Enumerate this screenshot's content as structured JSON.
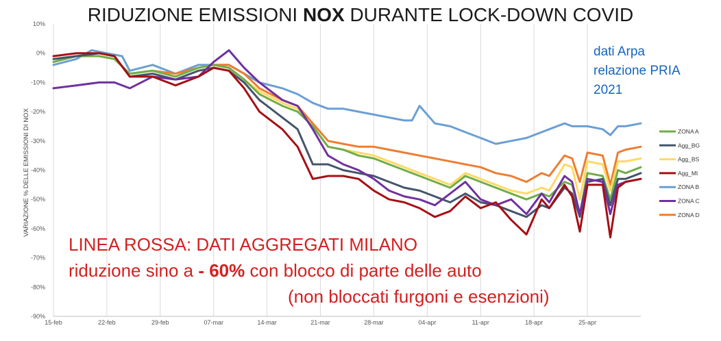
{
  "title": {
    "pre": "RIDUZIONE EMISSIONI ",
    "bold": "NOX",
    "post": " DURANTE LOCK-DOWN COVID"
  },
  "source": [
    "dati Arpa",
    "relazione PRIA",
    "2021"
  ],
  "annotation": {
    "line1": "LINEA ROSSA:  DATI AGGREGATI MILANO",
    "line2_pre": "riduzione sino a  ",
    "line2_bold": "- 60%",
    "line2_post": " con blocco di parte delle auto",
    "line3": "(non bloccati furgoni e esenzioni)"
  },
  "colors": {
    "ZONA A": "#70ad47",
    "Agg_BG": "#44546a",
    "Agg_BS": "#ffd966",
    "Agg_MI": "#a50f15",
    "ZONA B": "#6a9fd4",
    "ZONA C": "#7030a0",
    "ZONA D": "#ed7d31",
    "annotation": "#d42020",
    "source": "#1565c0"
  },
  "chart_data": {
    "type": "line",
    "title": "RIDUZIONE EMISSIONI NOX DURANTE LOCK-DOWN COVID",
    "xlabel": "",
    "ylabel": "VARIAZIONE % DELLE EMISSIONI DI NOX",
    "x_ticks": [
      "15-feb",
      "22-feb",
      "29-feb",
      "07-mar",
      "14-mar",
      "21-mar",
      "28-mar",
      "04-apr",
      "11-apr",
      "18-apr",
      "25-apr"
    ],
    "y_ticks": [
      "10%",
      "0%",
      "-10%",
      "-20%",
      "-30%",
      "-40%",
      "-50%",
      "-60%",
      "-70%",
      "-80%",
      "-90%"
    ],
    "ylim": [
      -90,
      10
    ],
    "xlim": [
      0,
      77
    ],
    "grid": "vertical",
    "legend_position": "right",
    "series": [
      {
        "name": "ZONA A",
        "points": [
          [
            0,
            -3
          ],
          [
            3,
            -1
          ],
          [
            6,
            -1
          ],
          [
            8,
            -2
          ],
          [
            10,
            -7
          ],
          [
            13,
            -6
          ],
          [
            16,
            -8
          ],
          [
            19,
            -5
          ],
          [
            21,
            -4
          ],
          [
            23,
            -5
          ],
          [
            25,
            -9
          ],
          [
            27,
            -14
          ],
          [
            30,
            -18
          ],
          [
            32,
            -20
          ],
          [
            34,
            -25
          ],
          [
            36,
            -32
          ],
          [
            38,
            -33
          ],
          [
            40,
            -35
          ],
          [
            42,
            -36
          ],
          [
            44,
            -38
          ],
          [
            46,
            -40
          ],
          [
            48,
            -42
          ],
          [
            50,
            -44
          ],
          [
            52,
            -46
          ],
          [
            54,
            -42
          ],
          [
            56,
            -44
          ],
          [
            58,
            -46
          ],
          [
            60,
            -48
          ],
          [
            62,
            -50
          ],
          [
            64,
            -48
          ],
          [
            65,
            -49
          ],
          [
            67,
            -44
          ],
          [
            68,
            -45
          ],
          [
            69,
            -55
          ],
          [
            70,
            -41
          ],
          [
            72,
            -42
          ],
          [
            73,
            -50
          ],
          [
            74,
            -40
          ],
          [
            75,
            -41
          ],
          [
            77,
            -39
          ]
        ]
      },
      {
        "name": "Agg_BG",
        "points": [
          [
            0,
            -2
          ],
          [
            3,
            -1
          ],
          [
            6,
            0
          ],
          [
            8,
            -1
          ],
          [
            10,
            -8
          ],
          [
            13,
            -7
          ],
          [
            16,
            -9
          ],
          [
            19,
            -6
          ],
          [
            21,
            -5
          ],
          [
            23,
            -6
          ],
          [
            25,
            -10
          ],
          [
            27,
            -16
          ],
          [
            30,
            -22
          ],
          [
            32,
            -26
          ],
          [
            34,
            -38
          ],
          [
            36,
            -38
          ],
          [
            38,
            -40
          ],
          [
            40,
            -41
          ],
          [
            42,
            -42
          ],
          [
            44,
            -44
          ],
          [
            46,
            -46
          ],
          [
            48,
            -47
          ],
          [
            50,
            -49
          ],
          [
            52,
            -51
          ],
          [
            54,
            -48
          ],
          [
            56,
            -51
          ],
          [
            58,
            -52
          ],
          [
            60,
            -54
          ],
          [
            62,
            -56
          ],
          [
            64,
            -52
          ],
          [
            65,
            -53
          ],
          [
            67,
            -46
          ],
          [
            68,
            -48
          ],
          [
            69,
            -56
          ],
          [
            70,
            -44
          ],
          [
            72,
            -43
          ],
          [
            73,
            -52
          ],
          [
            74,
            -43
          ],
          [
            75,
            -43
          ],
          [
            77,
            -41
          ]
        ]
      },
      {
        "name": "Agg_BS",
        "points": [
          [
            0,
            -2
          ],
          [
            3,
            -1
          ],
          [
            6,
            -1
          ],
          [
            8,
            -2
          ],
          [
            10,
            -7
          ],
          [
            13,
            -6
          ],
          [
            16,
            -8
          ],
          [
            19,
            -5
          ],
          [
            21,
            -4
          ],
          [
            23,
            -5
          ],
          [
            25,
            -9
          ],
          [
            27,
            -13
          ],
          [
            30,
            -17
          ],
          [
            32,
            -19
          ],
          [
            34,
            -25
          ],
          [
            36,
            -32
          ],
          [
            38,
            -33
          ],
          [
            40,
            -34
          ],
          [
            42,
            -35
          ],
          [
            44,
            -37
          ],
          [
            46,
            -39
          ],
          [
            48,
            -41
          ],
          [
            50,
            -43
          ],
          [
            52,
            -45
          ],
          [
            54,
            -41
          ],
          [
            56,
            -43
          ],
          [
            58,
            -45
          ],
          [
            60,
            -47
          ],
          [
            62,
            -48
          ],
          [
            64,
            -46
          ],
          [
            65,
            -47
          ],
          [
            67,
            -38
          ],
          [
            68,
            -39
          ],
          [
            69,
            -50
          ],
          [
            70,
            -37
          ],
          [
            72,
            -38
          ],
          [
            73,
            -47
          ],
          [
            74,
            -37
          ],
          [
            75,
            -37
          ],
          [
            77,
            -36
          ]
        ]
      },
      {
        "name": "Agg_MI",
        "points": [
          [
            0,
            -1
          ],
          [
            3,
            0
          ],
          [
            6,
            0
          ],
          [
            8,
            -1
          ],
          [
            10,
            -8
          ],
          [
            13,
            -8
          ],
          [
            16,
            -11
          ],
          [
            19,
            -8
          ],
          [
            21,
            -5
          ],
          [
            23,
            -6
          ],
          [
            25,
            -12
          ],
          [
            27,
            -20
          ],
          [
            30,
            -26
          ],
          [
            32,
            -32
          ],
          [
            34,
            -43
          ],
          [
            36,
            -42
          ],
          [
            38,
            -42
          ],
          [
            40,
            -43
          ],
          [
            42,
            -47
          ],
          [
            44,
            -50
          ],
          [
            46,
            -51
          ],
          [
            48,
            -53
          ],
          [
            50,
            -56
          ],
          [
            52,
            -54
          ],
          [
            54,
            -49
          ],
          [
            56,
            -53
          ],
          [
            58,
            -51
          ],
          [
            60,
            -57
          ],
          [
            62,
            -62
          ],
          [
            64,
            -50
          ],
          [
            65,
            -53
          ],
          [
            67,
            -45
          ],
          [
            68,
            -49
          ],
          [
            69,
            -61
          ],
          [
            70,
            -45
          ],
          [
            72,
            -45
          ],
          [
            73,
            -63
          ],
          [
            74,
            -46
          ],
          [
            75,
            -44
          ],
          [
            77,
            -43
          ]
        ]
      },
      {
        "name": "ZONA B",
        "points": [
          [
            0,
            -4
          ],
          [
            3,
            -2
          ],
          [
            5,
            1
          ],
          [
            7,
            0
          ],
          [
            9,
            -1
          ],
          [
            10,
            -6
          ],
          [
            13,
            -4
          ],
          [
            16,
            -7
          ],
          [
            19,
            -4
          ],
          [
            21,
            -4
          ],
          [
            23,
            -4
          ],
          [
            25,
            -7
          ],
          [
            27,
            -10
          ],
          [
            30,
            -12
          ],
          [
            32,
            -14
          ],
          [
            34,
            -17
          ],
          [
            36,
            -19
          ],
          [
            38,
            -19
          ],
          [
            40,
            -20
          ],
          [
            42,
            -21
          ],
          [
            44,
            -22
          ],
          [
            46,
            -23
          ],
          [
            47,
            -23
          ],
          [
            48,
            -18
          ],
          [
            50,
            -24
          ],
          [
            52,
            -25
          ],
          [
            54,
            -27
          ],
          [
            56,
            -29
          ],
          [
            58,
            -31
          ],
          [
            60,
            -30
          ],
          [
            62,
            -29
          ],
          [
            64,
            -27
          ],
          [
            65,
            -26
          ],
          [
            67,
            -24
          ],
          [
            68,
            -25
          ],
          [
            69,
            -25
          ],
          [
            70,
            -25
          ],
          [
            72,
            -26
          ],
          [
            73,
            -28
          ],
          [
            74,
            -25
          ],
          [
            75,
            -25
          ],
          [
            77,
            -24
          ]
        ]
      },
      {
        "name": "ZONA C",
        "points": [
          [
            0,
            -12
          ],
          [
            3,
            -11
          ],
          [
            6,
            -10
          ],
          [
            8,
            -10
          ],
          [
            10,
            -12
          ],
          [
            13,
            -8
          ],
          [
            16,
            -9
          ],
          [
            19,
            -8
          ],
          [
            21,
            -3
          ],
          [
            23,
            1
          ],
          [
            25,
            -5
          ],
          [
            27,
            -10
          ],
          [
            30,
            -16
          ],
          [
            32,
            -18
          ],
          [
            34,
            -26
          ],
          [
            36,
            -35
          ],
          [
            38,
            -38
          ],
          [
            40,
            -40
          ],
          [
            42,
            -43
          ],
          [
            44,
            -47
          ],
          [
            46,
            -49
          ],
          [
            48,
            -50
          ],
          [
            50,
            -52
          ],
          [
            52,
            -48
          ],
          [
            54,
            -44
          ],
          [
            56,
            -50
          ],
          [
            58,
            -52
          ],
          [
            60,
            -50
          ],
          [
            62,
            -55
          ],
          [
            64,
            -48
          ],
          [
            65,
            -51
          ],
          [
            67,
            -42
          ],
          [
            68,
            -44
          ],
          [
            69,
            -55
          ],
          [
            70,
            -43
          ],
          [
            72,
            -44
          ],
          [
            73,
            -55
          ],
          [
            74,
            -45
          ],
          [
            75,
            -44
          ],
          [
            77,
            -43
          ]
        ]
      },
      {
        "name": "ZONA D",
        "points": [
          [
            0,
            -2
          ],
          [
            3,
            -1
          ],
          [
            6,
            -1
          ],
          [
            8,
            -2
          ],
          [
            10,
            -7
          ],
          [
            13,
            -6
          ],
          [
            16,
            -7
          ],
          [
            19,
            -5
          ],
          [
            21,
            -4
          ],
          [
            23,
            -4
          ],
          [
            25,
            -7
          ],
          [
            27,
            -12
          ],
          [
            30,
            -16
          ],
          [
            32,
            -18
          ],
          [
            34,
            -24
          ],
          [
            36,
            -30
          ],
          [
            38,
            -31
          ],
          [
            40,
            -32
          ],
          [
            42,
            -32
          ],
          [
            44,
            -33
          ],
          [
            46,
            -34
          ],
          [
            48,
            -35
          ],
          [
            50,
            -36
          ],
          [
            52,
            -37
          ],
          [
            54,
            -38
          ],
          [
            56,
            -39
          ],
          [
            58,
            -41
          ],
          [
            60,
            -42
          ],
          [
            62,
            -44
          ],
          [
            64,
            -41
          ],
          [
            65,
            -42
          ],
          [
            67,
            -35
          ],
          [
            68,
            -36
          ],
          [
            69,
            -44
          ],
          [
            70,
            -34
          ],
          [
            72,
            -35
          ],
          [
            73,
            -45
          ],
          [
            74,
            -34
          ],
          [
            75,
            -33
          ],
          [
            77,
            -32
          ]
        ]
      }
    ]
  }
}
